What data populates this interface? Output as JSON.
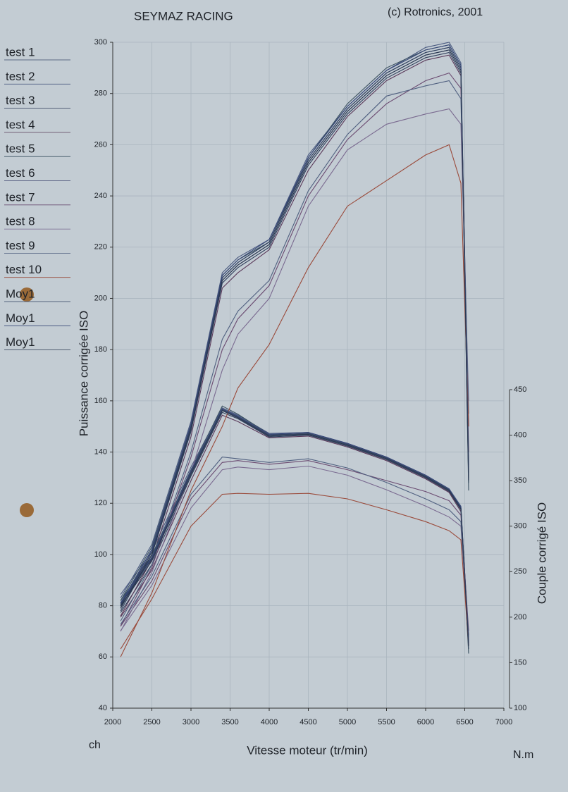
{
  "chart_data": {
    "type": "line",
    "title": "SEYMAZ RACING",
    "subtitle": "(c) Rotronics, 2001",
    "x_label": "Vitesse moteur (tr/min)",
    "y_label": "Puissance corrigée ISO",
    "y2_label": "Couple corrigé ISO",
    "y_unit": "ch",
    "y2_unit": "N.m",
    "grid": true,
    "legend": "left",
    "xlim": [
      2000,
      7000
    ],
    "xticks": [
      2000,
      2500,
      3000,
      3500,
      4000,
      4500,
      5000,
      5500,
      6000,
      6500,
      7000
    ],
    "ylim": [
      40,
      300
    ],
    "yticks": [
      40,
      60,
      80,
      100,
      120,
      140,
      160,
      180,
      200,
      220,
      240,
      260,
      280,
      300
    ],
    "y2lim": [
      100,
      450
    ],
    "y2ticks": [
      100,
      150,
      200,
      250,
      300,
      350,
      400,
      450
    ],
    "x": [
      2100,
      2500,
      3000,
      3400,
      3600,
      4000,
      4500,
      5000,
      5500,
      6000,
      6300,
      6450,
      6550
    ],
    "series": [
      {
        "name": "test 1",
        "color": "#3a4a6a",
        "values": [
          80,
          102,
          150,
          208,
          214,
          222,
          254,
          274,
          288,
          296,
          298,
          290,
          130
        ],
        "torque_values": [
          215,
          265,
          360,
          428,
          420,
          400,
          402,
          390,
          375,
          355,
          340,
          320,
          170
        ]
      },
      {
        "name": "test 2",
        "color": "#4a5a80",
        "values": [
          83,
          104,
          152,
          210,
          216,
          223,
          256,
          275,
          289,
          298,
          300,
          292,
          135
        ],
        "torque_values": [
          225,
          272,
          365,
          430,
          422,
          402,
          403,
          391,
          376,
          356,
          341,
          322,
          175
        ]
      },
      {
        "name": "test 3",
        "color": "#2f3d5a",
        "values": [
          78,
          100,
          148,
          206,
          212,
          220,
          252,
          272,
          286,
          294,
          296,
          288,
          128
        ],
        "torque_values": [
          205,
          258,
          355,
          425,
          418,
          398,
          400,
          388,
          373,
          353,
          338,
          318,
          165
        ]
      },
      {
        "name": "test 4",
        "color": "#5a3a5a",
        "values": [
          76,
          98,
          146,
          204,
          210,
          219,
          250,
          271,
          285,
          293,
          295,
          287,
          140
        ],
        "torque_values": [
          200,
          252,
          350,
          422,
          415,
          397,
          399,
          387,
          372,
          352,
          337,
          316,
          180
        ]
      },
      {
        "name": "test 5",
        "color": "#3a5060",
        "values": [
          82,
          103,
          151,
          209,
          215,
          222,
          255,
          276,
          290,
          297,
          299,
          291,
          125
        ],
        "torque_values": [
          218,
          268,
          362,
          432,
          423,
          401,
          401,
          389,
          374,
          354,
          339,
          319,
          160
        ]
      },
      {
        "name": "test 6",
        "color": "#404870",
        "values": [
          79,
          101,
          149,
          207,
          213,
          221,
          253,
          273,
          287,
          295,
          297,
          289,
          133
        ],
        "torque_values": [
          212,
          262,
          358,
          427,
          419,
          399,
          401,
          389,
          374,
          354,
          339,
          320,
          172
        ]
      },
      {
        "name": "test 7",
        "color": "#6a4a70",
        "values": [
          72,
          95,
          138,
          180,
          192,
          205,
          240,
          262,
          276,
          285,
          288,
          282,
          150
        ],
        "torque_values": [
          190,
          240,
          330,
          370,
          372,
          368,
          372,
          362,
          350,
          338,
          328,
          312,
          185
        ]
      },
      {
        "name": "test 8",
        "color": "#7a6a90",
        "values": [
          70,
          93,
          132,
          172,
          186,
          200,
          236,
          258,
          268,
          272,
          274,
          268,
          160
        ],
        "torque_values": [
          185,
          235,
          320,
          362,
          365,
          362,
          366,
          356,
          340,
          322,
          310,
          300,
          175
        ]
      },
      {
        "name": "test 9",
        "color": "#506080",
        "values": [
          74,
          96,
          140,
          184,
          195,
          207,
          242,
          264,
          279,
          283,
          285,
          278,
          155
        ],
        "torque_values": [
          192,
          245,
          335,
          376,
          374,
          370,
          374,
          364,
          348,
          330,
          318,
          305,
          178
        ]
      },
      {
        "name": "test 10",
        "color": "#9a4a3a",
        "values": [
          60,
          85,
          125,
          150,
          165,
          182,
          212,
          236,
          246,
          256,
          260,
          245,
          150
        ],
        "torque_values": [
          165,
          220,
          300,
          335,
          336,
          335,
          336,
          330,
          318,
          305,
          295,
          285,
          170
        ]
      },
      {
        "name": "Moy1",
        "color": "#304060",
        "values": [
          80,
          101,
          150,
          208,
          214,
          222,
          254,
          274,
          288,
          296,
          298,
          290,
          132
        ],
        "torque_values": [
          214,
          264,
          359,
          428,
          420,
          400,
          402,
          390,
          375,
          355,
          340,
          320,
          170
        ]
      },
      {
        "name": "Moy1",
        "color": "#384878",
        "values": [
          81,
          102,
          151,
          209,
          215,
          223,
          255,
          275,
          289,
          297,
          299,
          291,
          134
        ],
        "torque_values": [
          216,
          266,
          361,
          429,
          421,
          401,
          403,
          391,
          376,
          356,
          341,
          321,
          172
        ]
      },
      {
        "name": "Moy1",
        "color": "#2a3850",
        "values": [
          79,
          100,
          149,
          207,
          213,
          221,
          253,
          273,
          287,
          295,
          297,
          289,
          129
        ],
        "torque_values": [
          212,
          262,
          357,
          427,
          419,
          399,
          401,
          389,
          374,
          354,
          339,
          319,
          168
        ]
      }
    ]
  }
}
